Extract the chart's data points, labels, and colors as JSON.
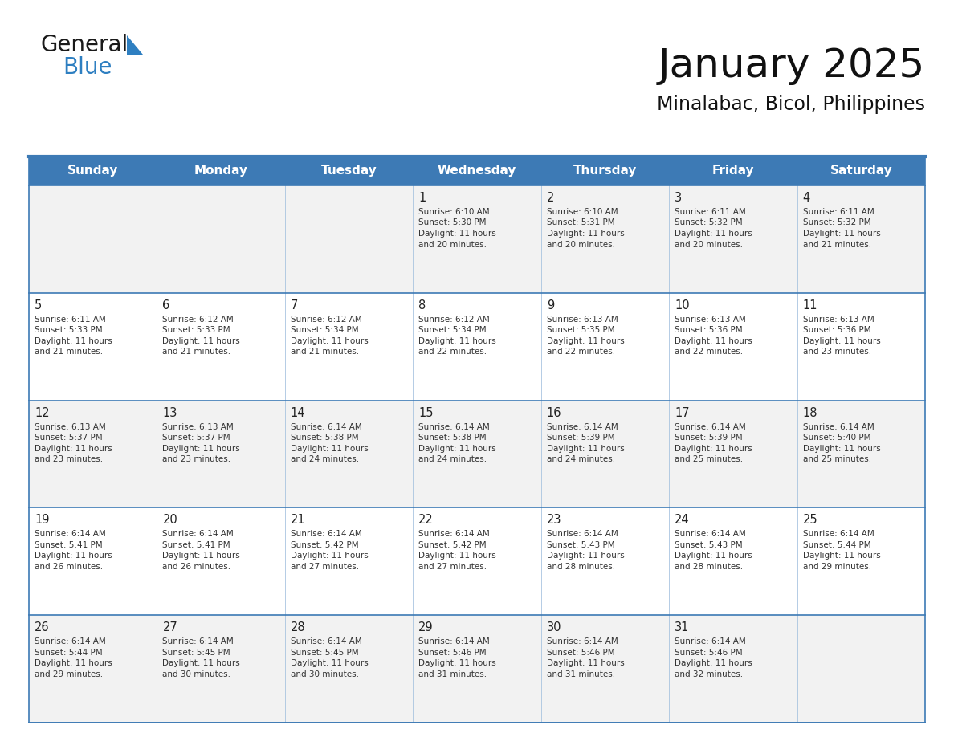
{
  "title": "January 2025",
  "subtitle": "Minalabac, Bicol, Philippines",
  "header_bg_color": "#3d7ab5",
  "header_text_color": "#ffffff",
  "day_names": [
    "Sunday",
    "Monday",
    "Tuesday",
    "Wednesday",
    "Thursday",
    "Friday",
    "Saturday"
  ],
  "row_colors": [
    "#f2f2f2",
    "#ffffff",
    "#f2f2f2",
    "#ffffff",
    "#f2f2f2"
  ],
  "border_color": "#3d7ab5",
  "sep_color": "#a8c4e0",
  "day_num_color": "#222222",
  "cell_text_color": "#333333",
  "calendar": [
    [
      null,
      null,
      null,
      {
        "day": 1,
        "sunrise": "6:10 AM",
        "sunset": "5:30 PM",
        "daylight": "11 hours and 20 minutes."
      },
      {
        "day": 2,
        "sunrise": "6:10 AM",
        "sunset": "5:31 PM",
        "daylight": "11 hours and 20 minutes."
      },
      {
        "day": 3,
        "sunrise": "6:11 AM",
        "sunset": "5:32 PM",
        "daylight": "11 hours and 20 minutes."
      },
      {
        "day": 4,
        "sunrise": "6:11 AM",
        "sunset": "5:32 PM",
        "daylight": "11 hours and 21 minutes."
      }
    ],
    [
      {
        "day": 5,
        "sunrise": "6:11 AM",
        "sunset": "5:33 PM",
        "daylight": "11 hours and 21 minutes."
      },
      {
        "day": 6,
        "sunrise": "6:12 AM",
        "sunset": "5:33 PM",
        "daylight": "11 hours and 21 minutes."
      },
      {
        "day": 7,
        "sunrise": "6:12 AM",
        "sunset": "5:34 PM",
        "daylight": "11 hours and 21 minutes."
      },
      {
        "day": 8,
        "sunrise": "6:12 AM",
        "sunset": "5:34 PM",
        "daylight": "11 hours and 22 minutes."
      },
      {
        "day": 9,
        "sunrise": "6:13 AM",
        "sunset": "5:35 PM",
        "daylight": "11 hours and 22 minutes."
      },
      {
        "day": 10,
        "sunrise": "6:13 AM",
        "sunset": "5:36 PM",
        "daylight": "11 hours and 22 minutes."
      },
      {
        "day": 11,
        "sunrise": "6:13 AM",
        "sunset": "5:36 PM",
        "daylight": "11 hours and 23 minutes."
      }
    ],
    [
      {
        "day": 12,
        "sunrise": "6:13 AM",
        "sunset": "5:37 PM",
        "daylight": "11 hours and 23 minutes."
      },
      {
        "day": 13,
        "sunrise": "6:13 AM",
        "sunset": "5:37 PM",
        "daylight": "11 hours and 23 minutes."
      },
      {
        "day": 14,
        "sunrise": "6:14 AM",
        "sunset": "5:38 PM",
        "daylight": "11 hours and 24 minutes."
      },
      {
        "day": 15,
        "sunrise": "6:14 AM",
        "sunset": "5:38 PM",
        "daylight": "11 hours and 24 minutes."
      },
      {
        "day": 16,
        "sunrise": "6:14 AM",
        "sunset": "5:39 PM",
        "daylight": "11 hours and 24 minutes."
      },
      {
        "day": 17,
        "sunrise": "6:14 AM",
        "sunset": "5:39 PM",
        "daylight": "11 hours and 25 minutes."
      },
      {
        "day": 18,
        "sunrise": "6:14 AM",
        "sunset": "5:40 PM",
        "daylight": "11 hours and 25 minutes."
      }
    ],
    [
      {
        "day": 19,
        "sunrise": "6:14 AM",
        "sunset": "5:41 PM",
        "daylight": "11 hours and 26 minutes."
      },
      {
        "day": 20,
        "sunrise": "6:14 AM",
        "sunset": "5:41 PM",
        "daylight": "11 hours and 26 minutes."
      },
      {
        "day": 21,
        "sunrise": "6:14 AM",
        "sunset": "5:42 PM",
        "daylight": "11 hours and 27 minutes."
      },
      {
        "day": 22,
        "sunrise": "6:14 AM",
        "sunset": "5:42 PM",
        "daylight": "11 hours and 27 minutes."
      },
      {
        "day": 23,
        "sunrise": "6:14 AM",
        "sunset": "5:43 PM",
        "daylight": "11 hours and 28 minutes."
      },
      {
        "day": 24,
        "sunrise": "6:14 AM",
        "sunset": "5:43 PM",
        "daylight": "11 hours and 28 minutes."
      },
      {
        "day": 25,
        "sunrise": "6:14 AM",
        "sunset": "5:44 PM",
        "daylight": "11 hours and 29 minutes."
      }
    ],
    [
      {
        "day": 26,
        "sunrise": "6:14 AM",
        "sunset": "5:44 PM",
        "daylight": "11 hours and 29 minutes."
      },
      {
        "day": 27,
        "sunrise": "6:14 AM",
        "sunset": "5:45 PM",
        "daylight": "11 hours and 30 minutes."
      },
      {
        "day": 28,
        "sunrise": "6:14 AM",
        "sunset": "5:45 PM",
        "daylight": "11 hours and 30 minutes."
      },
      {
        "day": 29,
        "sunrise": "6:14 AM",
        "sunset": "5:46 PM",
        "daylight": "11 hours and 31 minutes."
      },
      {
        "day": 30,
        "sunrise": "6:14 AM",
        "sunset": "5:46 PM",
        "daylight": "11 hours and 31 minutes."
      },
      {
        "day": 31,
        "sunrise": "6:14 AM",
        "sunset": "5:46 PM",
        "daylight": "11 hours and 32 minutes."
      },
      null
    ]
  ],
  "logo_general_color": "#1a1a1a",
  "logo_blue_color": "#2e7fc1",
  "logo_triangle_color": "#2e7fc1",
  "fig_width": 11.88,
  "fig_height": 9.18,
  "dpi": 100
}
